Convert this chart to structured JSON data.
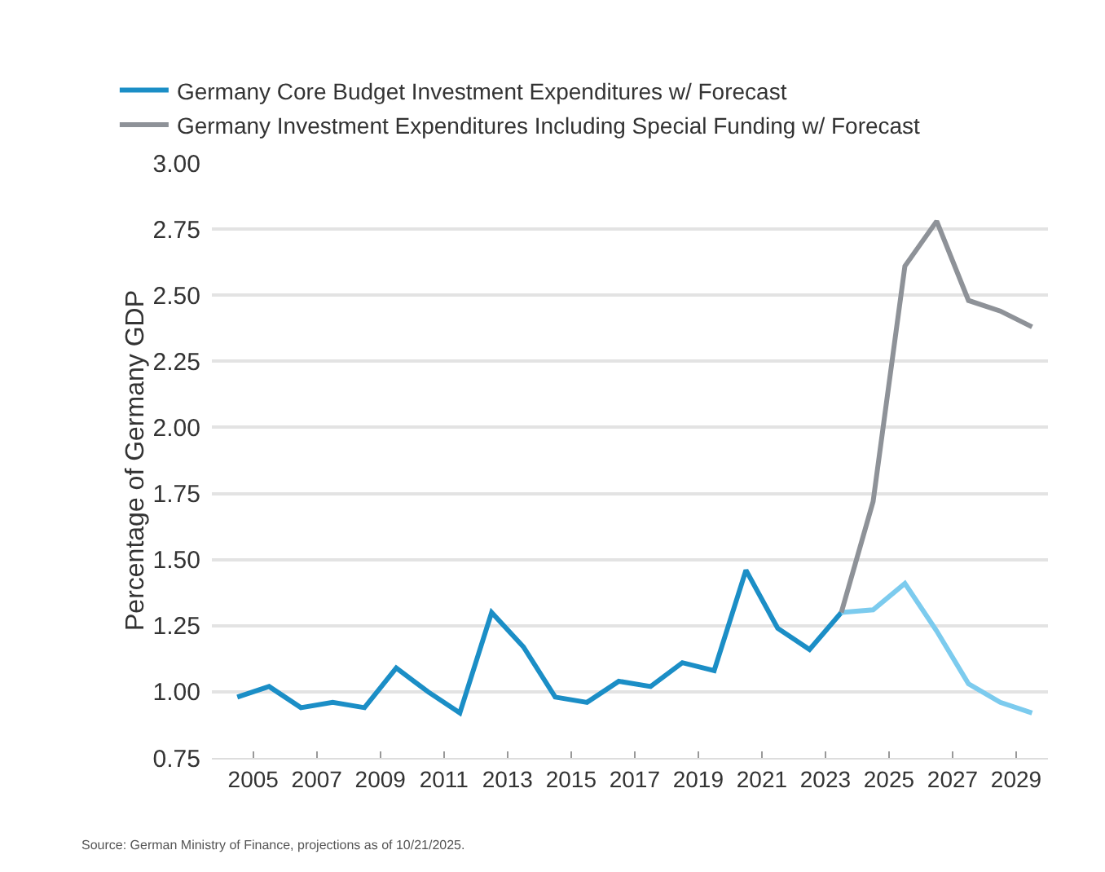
{
  "chart_data": {
    "type": "line",
    "ylabel": "Percentage of Germany GDP",
    "x": [
      2004.5,
      2005.5,
      2006.5,
      2007.5,
      2008.5,
      2009.5,
      2010.5,
      2011.5,
      2012.5,
      2013.5,
      2014.5,
      2015.5,
      2016.5,
      2017.5,
      2018.5,
      2019.5,
      2020.5,
      2021.5,
      2022.5,
      2023.5,
      2024.5,
      2025.5,
      2026.5,
      2027.5,
      2028.5,
      2029.5
    ],
    "series": [
      {
        "name": "Germany Core Budget Investment Expenditures w/ Forecast",
        "color": "#1b8ec6",
        "values": [
          0.98,
          1.02,
          0.94,
          0.96,
          0.94,
          1.09,
          1.0,
          0.92,
          1.3,
          1.17,
          0.98,
          0.96,
          1.04,
          1.02,
          1.11,
          1.08,
          1.46,
          1.24,
          1.16,
          1.3,
          null,
          null,
          null,
          null,
          null,
          null
        ]
      },
      {
        "color": "#7ccbee",
        "values": [
          null,
          null,
          null,
          null,
          null,
          null,
          null,
          null,
          null,
          null,
          null,
          null,
          null,
          null,
          null,
          null,
          null,
          null,
          null,
          1.3,
          1.31,
          1.41,
          1.23,
          1.03,
          0.96,
          0.92
        ]
      },
      {
        "name": "Germany Investment Expenditures Including Special Funding w/ Forecast",
        "color": "#8e9298",
        "values": [
          null,
          null,
          null,
          null,
          null,
          null,
          null,
          null,
          null,
          null,
          null,
          null,
          null,
          null,
          null,
          null,
          null,
          null,
          null,
          1.3,
          1.72,
          2.61,
          2.78,
          2.48,
          2.44,
          2.38
        ]
      }
    ],
    "xlim": [
      2003.7,
      2030
    ],
    "xticks": [
      2005,
      2007,
      2009,
      2011,
      2013,
      2015,
      2017,
      2019,
      2021,
      2023,
      2025,
      2027,
      2029
    ],
    "ylim": [
      0.75,
      3.0
    ],
    "yticks": [
      {
        "value": 0.75,
        "label": "0.75"
      },
      {
        "value": 1,
        "label": "1.00"
      },
      {
        "value": 1.25,
        "label": "1.25"
      },
      {
        "value": 1.5,
        "label": "1.50"
      },
      {
        "value": 1.75,
        "label": "1.75"
      },
      {
        "value": 2,
        "label": "2.00"
      },
      {
        "value": 2.25,
        "label": "2.25"
      },
      {
        "value": 2.5,
        "label": "2.50"
      },
      {
        "value": 2.75,
        "label": "2.75"
      },
      {
        "value": 3,
        "label": "3.00"
      }
    ],
    "grid": "y",
    "legend": "top left",
    "marker": "none",
    "line_style": "solid",
    "annotations": [
      "Source: German Ministry of Finance, projections as of 10/21/2025."
    ]
  }
}
